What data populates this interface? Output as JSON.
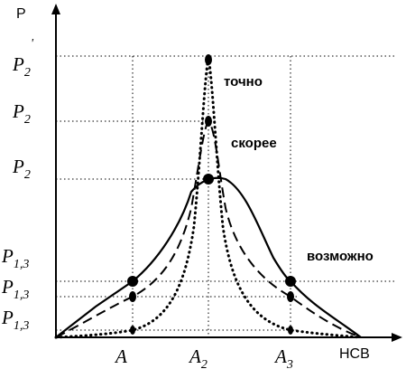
{
  "axes": {
    "y_label": "P",
    "x_label": "НСВ",
    "x_ticks": [
      {
        "base": "A",
        "sub": ""
      },
      {
        "base": "A",
        "sub": "2"
      },
      {
        "base": "A",
        "sub": "3"
      }
    ],
    "y_ticks": [
      {
        "base": "P",
        "sub": "2",
        "prime": "'"
      },
      {
        "base": "P",
        "sub": "2",
        "prime": ""
      },
      {
        "base": "P",
        "sub": "2",
        "prime": ""
      },
      {
        "base": "P",
        "sub": "1,3",
        "prime": ""
      },
      {
        "base": "P",
        "sub": "1,3",
        "prime": ""
      },
      {
        "base": "P",
        "sub": "1,3",
        "prime": ""
      }
    ]
  },
  "curves": [
    {
      "key": "exact",
      "label": "точно",
      "line_style": "dotted"
    },
    {
      "key": "likely",
      "label": "скорее",
      "line_style": "dashed"
    },
    {
      "key": "possible",
      "label": "возможно",
      "line_style": "solid"
    }
  ],
  "colors": {
    "ink": "#000000",
    "background": "#ffffff"
  }
}
